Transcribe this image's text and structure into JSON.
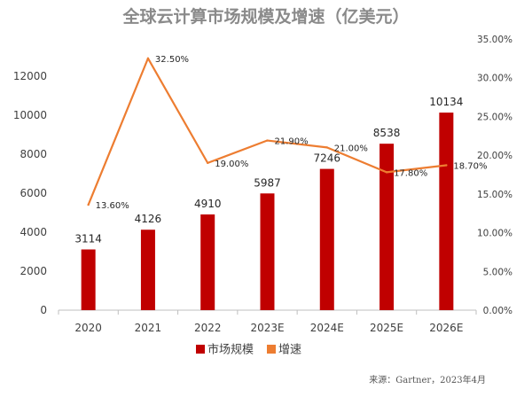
{
  "chart_data": {
    "type": "bar+line",
    "title": "全球云计算市场规模及增速（亿美元）",
    "categories": [
      "2020",
      "2021",
      "2022",
      "2023E",
      "2024E",
      "2025E",
      "2026E"
    ],
    "series": [
      {
        "name": "市场规模",
        "type": "bar",
        "axis": "left",
        "values": [
          3114,
          4126,
          4910,
          5987,
          7246,
          8538,
          10134
        ],
        "labels": [
          "3114",
          "4126",
          "4910",
          "5987",
          "7246",
          "8538",
          "10134"
        ]
      },
      {
        "name": "增速",
        "type": "line",
        "axis": "right",
        "values": [
          13.6,
          32.5,
          19.0,
          21.9,
          21.0,
          17.8,
          18.7
        ],
        "labels": [
          "13.60%",
          "32.50%",
          "19.00%",
          "21.90%",
          "21.00%",
          "17.80%",
          "18.70%"
        ]
      }
    ],
    "left_axis": {
      "ylim": [
        0,
        12000
      ],
      "ticks": [
        "0",
        "2000",
        "4000",
        "6000",
        "8000",
        "10000",
        "12000"
      ]
    },
    "right_axis": {
      "ylim": [
        0,
        35
      ],
      "ticks": [
        "0.00%",
        "5.00%",
        "10.00%",
        "15.00%",
        "20.00%",
        "25.00%",
        "30.00%",
        "35.00%"
      ]
    },
    "legend": {
      "position": "bottom"
    },
    "grid": false,
    "bar_color": "#c00000",
    "line_color": "#ed7d31"
  },
  "source": "来源：Gartner，2023年4月"
}
